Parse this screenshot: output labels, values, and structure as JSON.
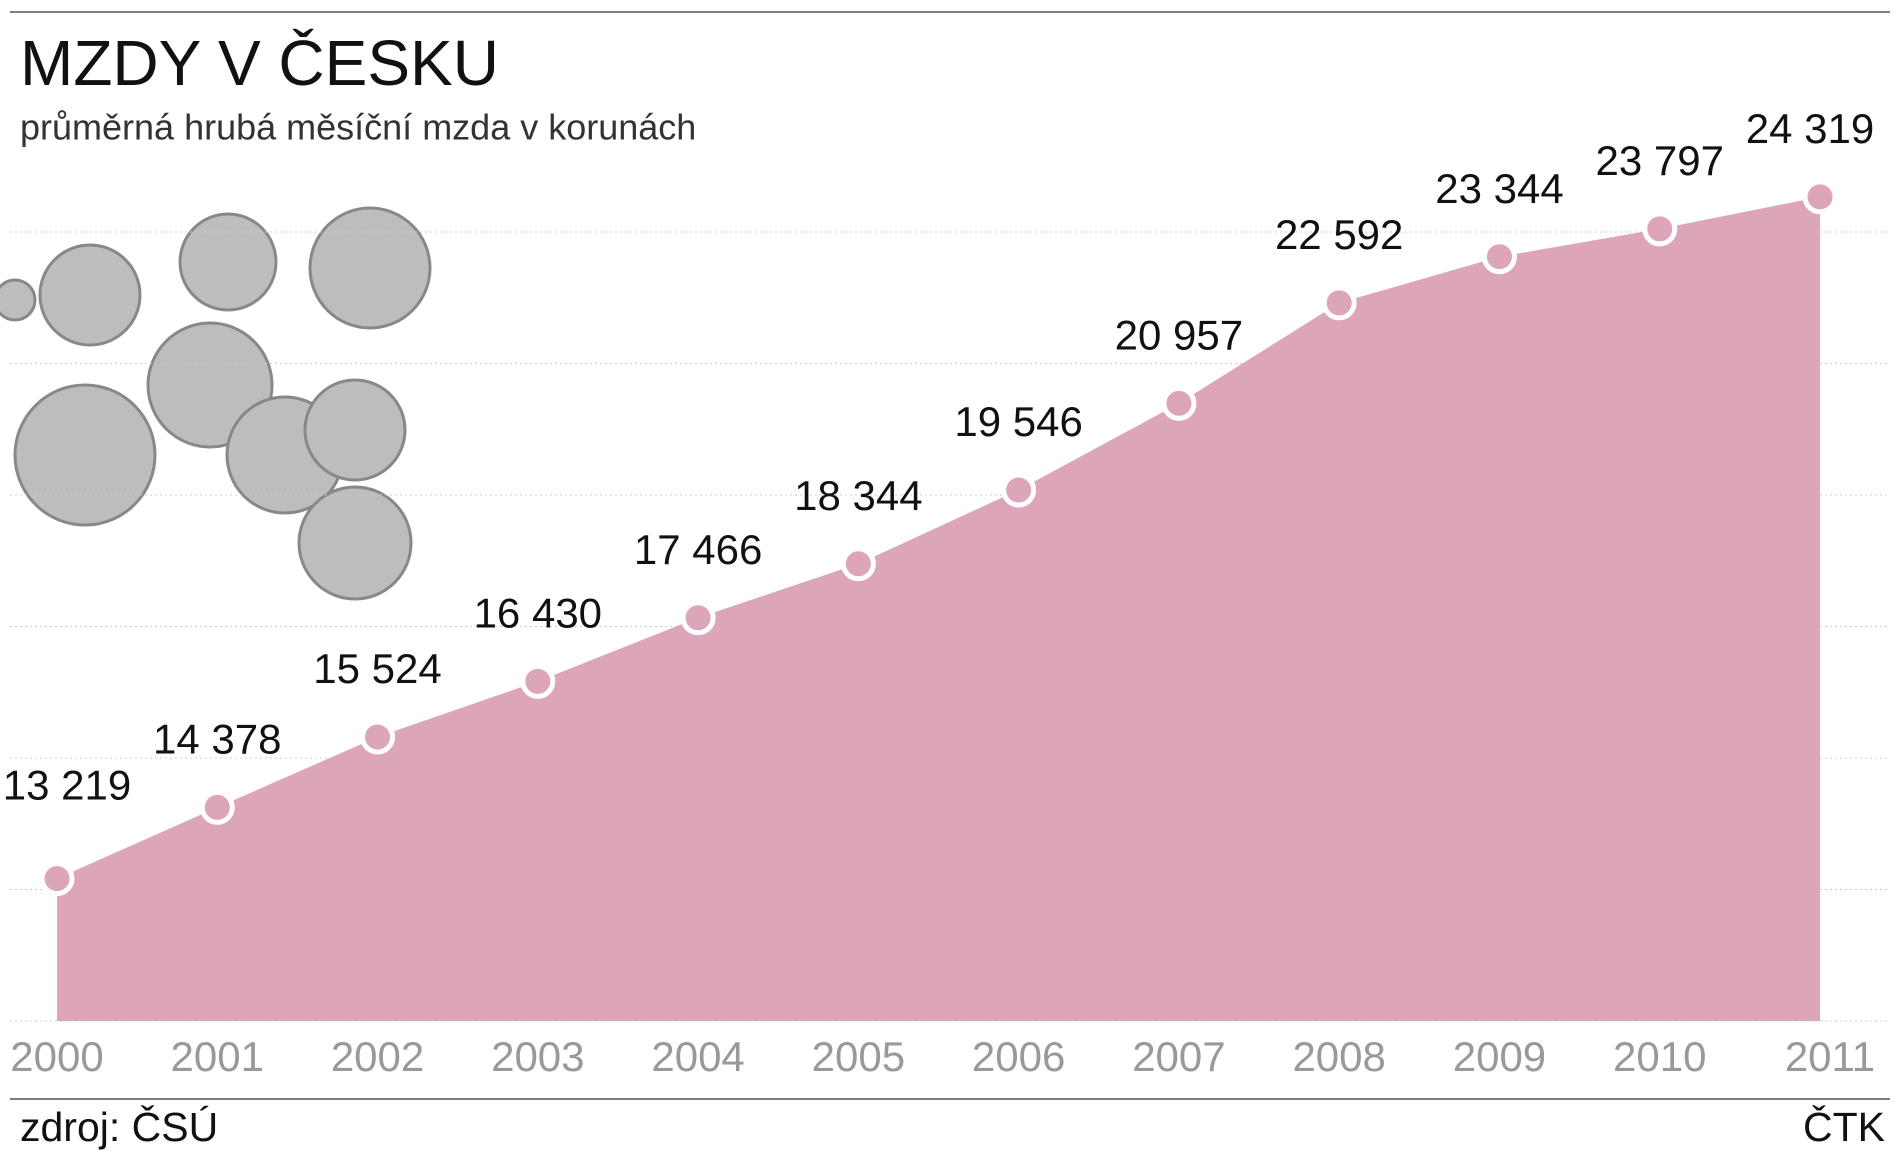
{
  "chart_data": {
    "type": "area",
    "title": "MZDY V ČESKU",
    "subtitle": "průměrná hrubá měsíční mzda v korunách",
    "source": "zdroj: ČSÚ",
    "credit": "ČTK",
    "categories": [
      "2000",
      "2001",
      "2002",
      "2003",
      "2004",
      "2005",
      "2006",
      "2007",
      "2008",
      "2009",
      "2010",
      "2011"
    ],
    "values": [
      13219,
      14378,
      15524,
      16430,
      17466,
      18344,
      19546,
      20957,
      22592,
      23344,
      23797,
      24319
    ],
    "value_labels": [
      "13 219",
      "14 378",
      "15 524",
      "16 430",
      "17 466",
      "18 344",
      "19 546",
      "20 957",
      "22 592",
      "23 344",
      "23 797",
      "24 319"
    ],
    "color": "#dca5b9",
    "ylim": [
      10900,
      25000
    ]
  }
}
